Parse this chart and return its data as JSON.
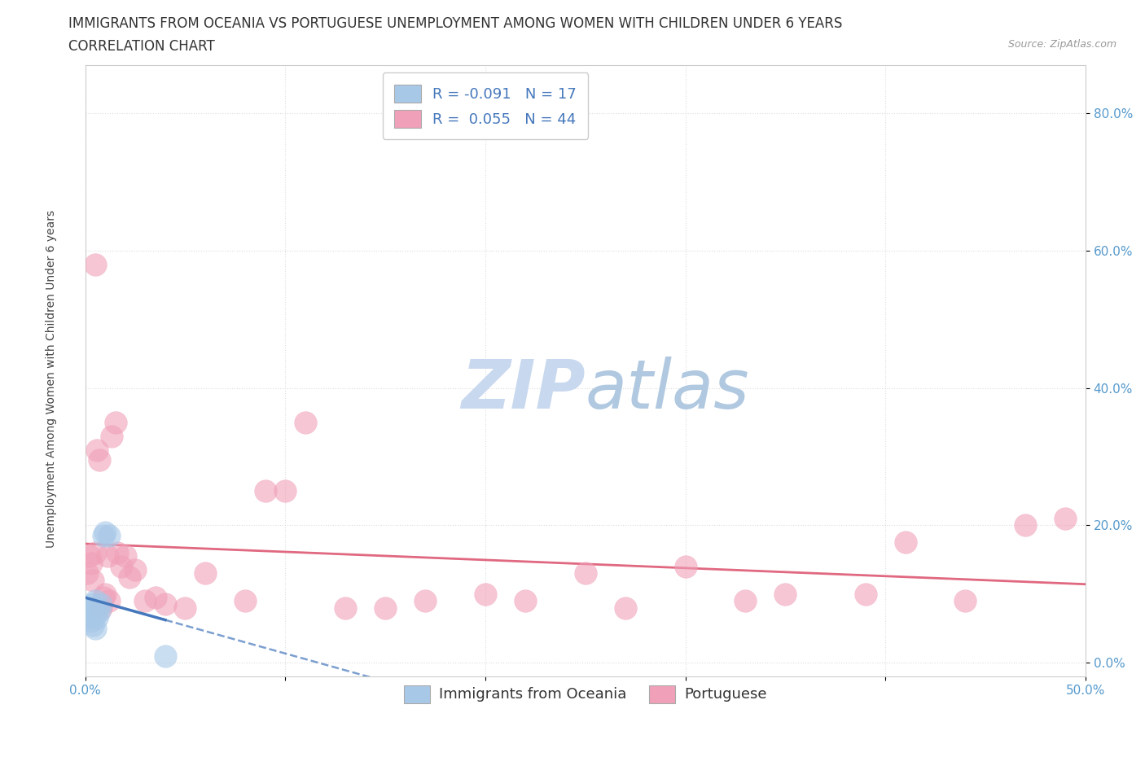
{
  "title_line1": "IMMIGRANTS FROM OCEANIA VS PORTUGUESE UNEMPLOYMENT AMONG WOMEN WITH CHILDREN UNDER 6 YEARS",
  "title_line2": "CORRELATION CHART",
  "source_text": "Source: ZipAtlas.com",
  "ylabel": "Unemployment Among Women with Children Under 6 years",
  "xlim": [
    0.0,
    0.5
  ],
  "ylim": [
    -0.02,
    0.87
  ],
  "xticks": [
    0.0,
    0.1,
    0.2,
    0.3,
    0.4,
    0.5
  ],
  "yticks": [
    0.0,
    0.2,
    0.4,
    0.6,
    0.8
  ],
  "xticklabels": [
    "0.0%",
    "",
    "",
    "",
    "",
    "50.0%"
  ],
  "yticklabels": [
    "0.0%",
    "20.0%",
    "40.0%",
    "60.0%",
    "80.0%"
  ],
  "background_color": "#ffffff",
  "grid_color": "#dddddd",
  "blue_color": "#a8c8e8",
  "pink_color": "#f0a0b8",
  "blue_line_color": "#4477bb",
  "pink_line_color": "#e06880",
  "blue_scatter": {
    "x": [
      0.001,
      0.002,
      0.003,
      0.003,
      0.004,
      0.004,
      0.005,
      0.005,
      0.005,
      0.006,
      0.006,
      0.007,
      0.008,
      0.009,
      0.01,
      0.012,
      0.04
    ],
    "y": [
      0.075,
      0.065,
      0.06,
      0.08,
      0.055,
      0.085,
      0.05,
      0.07,
      0.09,
      0.065,
      0.08,
      0.075,
      0.085,
      0.185,
      0.19,
      0.185,
      0.01
    ]
  },
  "pink_scatter": {
    "x": [
      0.001,
      0.002,
      0.003,
      0.004,
      0.005,
      0.005,
      0.006,
      0.007,
      0.008,
      0.009,
      0.01,
      0.011,
      0.012,
      0.013,
      0.015,
      0.016,
      0.018,
      0.02,
      0.022,
      0.025,
      0.03,
      0.035,
      0.04,
      0.05,
      0.06,
      0.08,
      0.09,
      0.1,
      0.11,
      0.13,
      0.15,
      0.17,
      0.2,
      0.22,
      0.25,
      0.27,
      0.3,
      0.33,
      0.35,
      0.39,
      0.41,
      0.44,
      0.47,
      0.49
    ],
    "y": [
      0.13,
      0.155,
      0.145,
      0.12,
      0.16,
      0.58,
      0.31,
      0.295,
      0.08,
      0.095,
      0.1,
      0.155,
      0.09,
      0.33,
      0.35,
      0.16,
      0.14,
      0.155,
      0.125,
      0.135,
      0.09,
      0.095,
      0.085,
      0.08,
      0.13,
      0.09,
      0.25,
      0.25,
      0.35,
      0.08,
      0.08,
      0.09,
      0.1,
      0.09,
      0.13,
      0.08,
      0.14,
      0.09,
      0.1,
      0.1,
      0.175,
      0.09,
      0.2,
      0.21
    ]
  },
  "blue_R": -0.091,
  "blue_N": 17,
  "pink_R": 0.055,
  "pink_N": 44,
  "legend_label1": "Immigrants from Oceania",
  "legend_label2": "Portuguese",
  "watermark_zip": "ZIP",
  "watermark_atlas": "atlas",
  "watermark_color_zip": "#c8d8ee",
  "watermark_color_atlas": "#b0c8e0",
  "title_fontsize": 12,
  "subtitle_fontsize": 12,
  "axis_label_fontsize": 10,
  "tick_fontsize": 11,
  "tick_color": "#5599cc"
}
